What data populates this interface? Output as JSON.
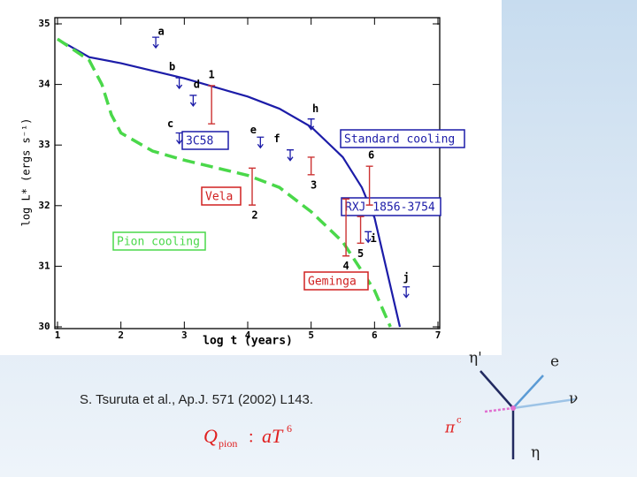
{
  "chart_data": {
    "type": "line",
    "xlabel": "log t   (years)",
    "ylabel": "log L* (ergs s⁻¹)",
    "xlim": [
      1,
      7
    ],
    "ylim": [
      30,
      35
    ],
    "xticks": [
      1,
      2,
      3,
      4,
      5,
      6,
      7
    ],
    "yticks": [
      30,
      31,
      32,
      33,
      34,
      35
    ],
    "series": [
      {
        "name": "Standard cooling",
        "color": "#1c1ca8",
        "style": "solid",
        "x": [
          1,
          1.5,
          2,
          3,
          4,
          4.5,
          5,
          5.5,
          5.8,
          6,
          6.2,
          6.4
        ],
        "values": [
          34.75,
          34.45,
          34.35,
          34.1,
          33.8,
          33.6,
          33.3,
          32.8,
          32.3,
          31.8,
          30.9,
          30
        ]
      },
      {
        "name": "Pion cooling",
        "color": "#4ad84a",
        "style": "dashed",
        "x": [
          1,
          1.5,
          1.7,
          1.85,
          2,
          2.5,
          3,
          4,
          4.5,
          5,
          5.5,
          6,
          6.25
        ],
        "values": [
          34.75,
          34.4,
          34.0,
          33.5,
          33.2,
          32.9,
          32.75,
          32.5,
          32.3,
          31.9,
          31.4,
          30.6,
          30
        ]
      }
    ],
    "upper_limits": [
      {
        "label": "a",
        "x": 2.55,
        "y": 34.78
      },
      {
        "label": "b",
        "x": 2.92,
        "y": 34.11
      },
      {
        "label": "d",
        "x": 3.14,
        "y": 33.82
      },
      {
        "label": "c",
        "x": 2.92,
        "y": 33.2
      },
      {
        "label": "e",
        "x": 4.2,
        "y": 33.13
      },
      {
        "label": "f",
        "x": 4.67,
        "y": 32.92
      },
      {
        "label": "h",
        "x": 5.0,
        "y": 33.43
      },
      {
        "label": "i",
        "x": 5.9,
        "y": 31.57
      },
      {
        "label": "j",
        "x": 6.5,
        "y": 30.66
      }
    ],
    "error_bars": [
      {
        "label": "1",
        "x": 3.43,
        "low": 33.35,
        "high": 33.98
      },
      {
        "label": "2",
        "x": 4.07,
        "low": 32.01,
        "high": 32.62
      },
      {
        "label": "3",
        "x": 5.0,
        "low": 32.51,
        "high": 32.8
      },
      {
        "label": "6",
        "x": 5.92,
        "low": 32.01,
        "high": 32.65
      },
      {
        "label": "5",
        "x": 5.78,
        "low": 31.38,
        "high": 31.82
      },
      {
        "label": "4",
        "x": 5.55,
        "low": 31.17,
        "high": 32.11
      }
    ],
    "annotations": [
      "3C58",
      "Vela",
      "RXJ 1856-3754",
      "Geminga"
    ]
  },
  "citation": "S. Tsuruta et al., Ap.J. 571 (2002) L143.",
  "formula": {
    "symbol": "Q",
    "subscript": "pion",
    "separator": ":",
    "expression": "aT",
    "exponent": "6"
  },
  "diagram": {
    "labels": [
      "η'",
      "e",
      "ν",
      "π",
      "c",
      "η"
    ]
  }
}
